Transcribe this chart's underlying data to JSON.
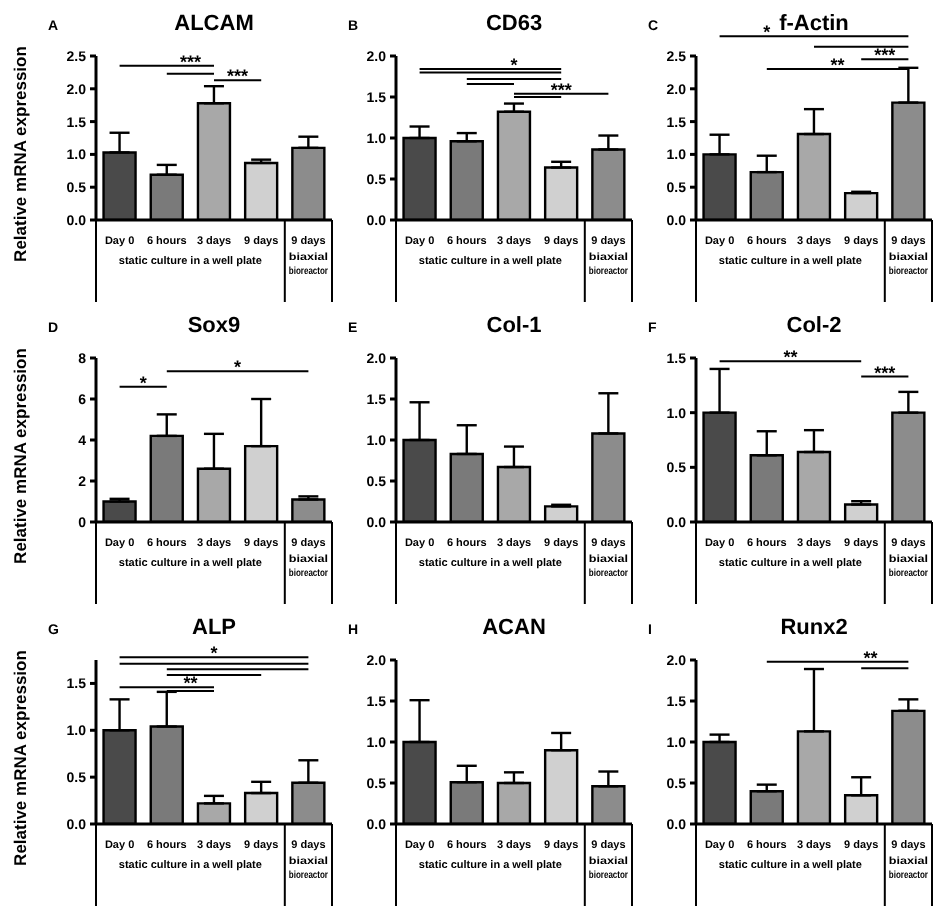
{
  "chart_data": [
    {
      "type": "bar",
      "title": "ALCAM",
      "ylabel": "Relative mRNA expression",
      "categories": [
        "Day 0",
        "6 hours",
        "3 days",
        "9 days",
        "9 days"
      ],
      "values": [
        1.03,
        0.69,
        1.78,
        0.87,
        1.1
      ],
      "errors": [
        [
          1.03,
          1.33
        ],
        [
          0.69,
          0.84
        ],
        [
          1.78,
          2.04
        ],
        [
          0.87,
          0.92
        ],
        [
          1.1,
          1.27
        ]
      ],
      "colors": [
        "#4a4a4a",
        "#7a7a7a",
        "#a8a8a8",
        "#d0d0d0",
        "#8c8c8c"
      ],
      "ylim": [
        0,
        2.5
      ],
      "yticks": [
        {
          "value": 0,
          "label": "0.0"
        },
        0.5,
        {
          "value": 1,
          "label": "1.0"
        },
        1.5,
        {
          "value": 2,
          "label": "2.0"
        },
        2.5
      ],
      "annotations": [
        "A",
        "***",
        "***",
        "static culture in a well plate",
        "biaxial bioreactor"
      ]
    },
    {
      "type": "bar",
      "title": "CD63",
      "categories": [
        "Day 0",
        "6 hours",
        "3 days",
        "9 days",
        "9 days"
      ],
      "values": [
        1.0,
        0.96,
        1.32,
        0.64,
        0.86
      ],
      "errors": [
        [
          1.0,
          1.14
        ],
        [
          0.96,
          1.06
        ],
        [
          1.32,
          1.42
        ],
        [
          0.64,
          0.71
        ],
        [
          0.86,
          1.03
        ]
      ],
      "colors": [
        "#4a4a4a",
        "#7a7a7a",
        "#a8a8a8",
        "#d0d0d0",
        "#8c8c8c"
      ],
      "ylim": [
        0,
        2
      ],
      "yticks": [
        {
          "value": 0,
          "label": "0.0"
        },
        0.5,
        {
          "value": 1,
          "label": "1.0"
        },
        1.5,
        {
          "value": 2,
          "label": "2.0"
        }
      ],
      "annotations": [
        "B",
        "*",
        "***",
        "static culture in a well plate",
        "biaxial bioreactor"
      ]
    },
    {
      "type": "bar",
      "title": "f-Actin",
      "categories": [
        "Day 0",
        "6 hours",
        "3 days",
        "9 days",
        "9 days"
      ],
      "values": [
        1.0,
        0.73,
        1.31,
        0.41,
        1.79
      ],
      "errors": [
        [
          1.0,
          1.3
        ],
        [
          0.73,
          0.98
        ],
        [
          1.31,
          1.69
        ],
        [
          0.41,
          0.43
        ],
        [
          1.79,
          2.32
        ]
      ],
      "colors": [
        "#4a4a4a",
        "#7a7a7a",
        "#a8a8a8",
        "#d0d0d0",
        "#8c8c8c"
      ],
      "ylim": [
        0,
        2.5
      ],
      "yticks": [
        {
          "value": 0,
          "label": "0.0"
        },
        0.5,
        {
          "value": 1,
          "label": "1.0"
        },
        1.5,
        {
          "value": 2,
          "label": "2.0"
        },
        2.5
      ],
      "annotations": [
        "C",
        "*",
        "**",
        "***",
        "static culture in a well plate",
        "biaxial bioreactor"
      ]
    },
    {
      "type": "bar",
      "title": "Sox9",
      "ylabel": "Relative mRNA expression",
      "categories": [
        "Day 0",
        "6 hours",
        "3 days",
        "9 days",
        "9 days"
      ],
      "values": [
        1.0,
        4.2,
        2.6,
        3.7,
        1.1
      ],
      "errors": [
        [
          1.0,
          1.13
        ],
        [
          4.2,
          5.25
        ],
        [
          2.6,
          4.3
        ],
        [
          3.7,
          6.0
        ],
        [
          1.1,
          1.25
        ]
      ],
      "colors": [
        "#4a4a4a",
        "#7a7a7a",
        "#a8a8a8",
        "#d0d0d0",
        "#8c8c8c"
      ],
      "ylim": [
        0,
        8
      ],
      "yticks": [
        0,
        2,
        4,
        6,
        8
      ],
      "annotations": [
        "D",
        "*",
        "*",
        "static culture in a well plate",
        "biaxial bioreactor"
      ]
    },
    {
      "type": "bar",
      "title": "Col-1",
      "categories": [
        "Day 0",
        "6 hours",
        "3 days",
        "9 days",
        "9 days"
      ],
      "values": [
        1.0,
        0.83,
        0.67,
        0.19,
        1.08
      ],
      "errors": [
        [
          1.0,
          1.46
        ],
        [
          0.83,
          1.18
        ],
        [
          0.67,
          0.92
        ],
        [
          0.19,
          0.21
        ],
        [
          1.08,
          1.57
        ]
      ],
      "colors": [
        "#4a4a4a",
        "#7a7a7a",
        "#a8a8a8",
        "#d0d0d0",
        "#8c8c8c"
      ],
      "ylim": [
        0,
        2
      ],
      "yticks": [
        {
          "value": 0,
          "label": "0.0"
        },
        0.5,
        {
          "value": 1,
          "label": "1.0"
        },
        1.5,
        {
          "value": 2,
          "label": "2.0"
        }
      ],
      "annotations": [
        "E",
        "static culture in a well plate",
        "biaxial bioreactor"
      ]
    },
    {
      "type": "bar",
      "title": "Col-2",
      "categories": [
        "Day 0",
        "6 hours",
        "3 days",
        "9 days",
        "9 days"
      ],
      "values": [
        1.0,
        0.61,
        0.64,
        0.16,
        1.0
      ],
      "errors": [
        [
          1.0,
          1.4
        ],
        [
          0.61,
          0.83
        ],
        [
          0.64,
          0.84
        ],
        [
          0.16,
          0.19
        ],
        [
          1.0,
          1.19
        ]
      ],
      "colors": [
        "#4a4a4a",
        "#7a7a7a",
        "#a8a8a8",
        "#d0d0d0",
        "#8c8c8c"
      ],
      "ylim": [
        0,
        1.5
      ],
      "yticks": [
        {
          "value": 0,
          "label": "0.0"
        },
        0.5,
        {
          "value": 1,
          "label": "1.0"
        },
        1.5
      ],
      "annotations": [
        "F",
        "**",
        "***",
        "static culture in a well plate",
        "biaxial bioreactor"
      ]
    },
    {
      "type": "bar",
      "title": "ALP",
      "ylabel": "Relative mRNA expression",
      "categories": [
        "Day 0",
        "6 hours",
        "3 days",
        "9 days",
        "9 days"
      ],
      "values": [
        1.0,
        1.04,
        0.22,
        0.33,
        0.44
      ],
      "errors": [
        [
          1.0,
          1.33
        ],
        [
          1.04,
          1.41
        ],
        [
          0.22,
          0.3
        ],
        [
          0.33,
          0.45
        ],
        [
          0.44,
          0.68
        ]
      ],
      "colors": [
        "#4a4a4a",
        "#7a7a7a",
        "#a8a8a8",
        "#d0d0d0",
        "#8c8c8c"
      ],
      "ylim": [
        0,
        1.75
      ],
      "yticks": [
        {
          "value": 0,
          "label": "0.0"
        },
        0.5,
        {
          "value": 1,
          "label": "1.0"
        },
        1.5
      ],
      "annotations": [
        "G",
        "*",
        "**",
        "static culture in a well plate",
        "biaxial bioreactor"
      ]
    },
    {
      "type": "bar",
      "title": "ACAN",
      "categories": [
        "Day 0",
        "6 hours",
        "3 days",
        "9 days",
        "9 days"
      ],
      "values": [
        1.0,
        0.51,
        0.5,
        0.9,
        0.46
      ],
      "errors": [
        [
          1.0,
          1.51
        ],
        [
          0.51,
          0.71
        ],
        [
          0.5,
          0.63
        ],
        [
          0.9,
          1.11
        ],
        [
          0.46,
          0.64
        ]
      ],
      "colors": [
        "#4a4a4a",
        "#7a7a7a",
        "#a8a8a8",
        "#d0d0d0",
        "#8c8c8c"
      ],
      "ylim": [
        0,
        2
      ],
      "yticks": [
        {
          "value": 0,
          "label": "0.0"
        },
        0.5,
        {
          "value": 1,
          "label": "1.0"
        },
        1.5,
        {
          "value": 2,
          "label": "2.0"
        }
      ],
      "annotations": [
        "H",
        "static culture in a well plate",
        "biaxial bioreactor"
      ]
    },
    {
      "type": "bar",
      "title": "Runx2",
      "categories": [
        "Day 0",
        "6 hours",
        "3 days",
        "9 days",
        "9 days"
      ],
      "values": [
        1.0,
        0.4,
        1.13,
        0.35,
        1.38
      ],
      "errors": [
        [
          1.0,
          1.09
        ],
        [
          0.4,
          0.48
        ],
        [
          1.13,
          1.89
        ],
        [
          0.35,
          0.57
        ],
        [
          1.38,
          1.52
        ]
      ],
      "colors": [
        "#4a4a4a",
        "#7a7a7a",
        "#a8a8a8",
        "#d0d0d0",
        "#8c8c8c"
      ],
      "ylim": [
        0,
        2
      ],
      "yticks": [
        {
          "value": 0,
          "label": "0.0"
        },
        0.5,
        {
          "value": 1,
          "label": "1.0"
        },
        1.5,
        {
          "value": 2,
          "label": "2.0"
        }
      ],
      "annotations": [
        "I",
        "**",
        "static culture in a well plate",
        "biaxial bioreactor"
      ]
    }
  ]
}
